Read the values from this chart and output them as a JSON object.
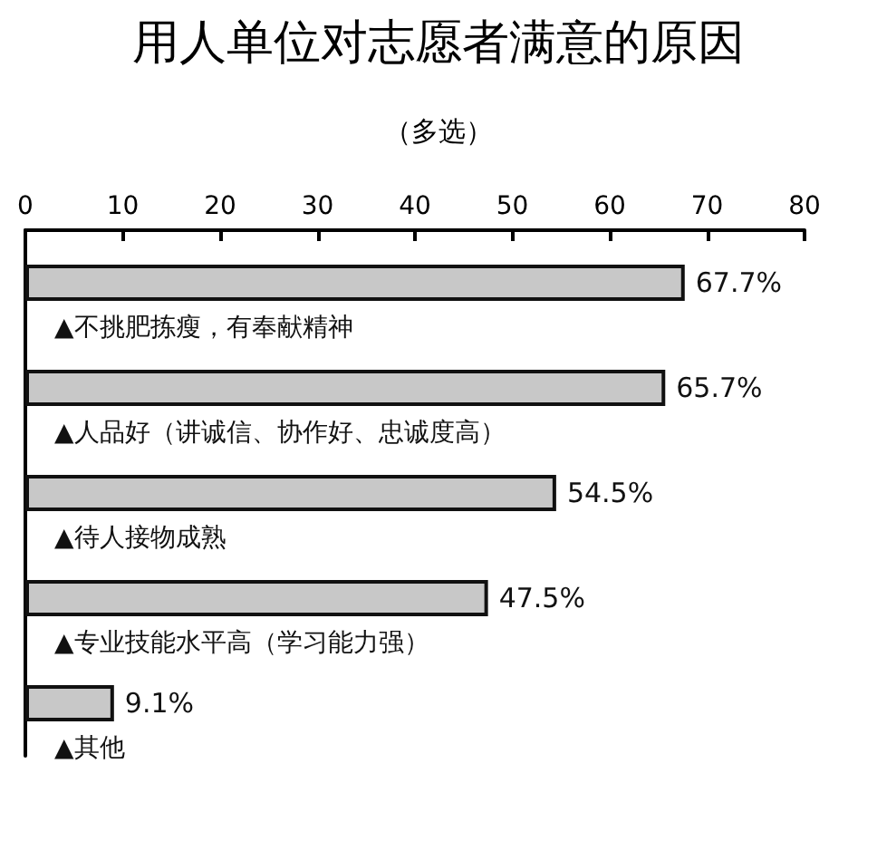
{
  "chart_data": {
    "type": "bar",
    "orientation": "horizontal",
    "title": "用人单位对志愿者满意的原因",
    "subtitle": "（多选）",
    "categories": [
      "▲不挑肥拣瘦，有奉献精神",
      "▲人品好（讲诚信、协作好、忠诚度高）",
      "▲待人接物成熟",
      "▲专业技能水平高（学习能力强）",
      "▲其他"
    ],
    "values": [
      67.7,
      65.7,
      54.5,
      47.5,
      9.1
    ],
    "value_labels": [
      "67.7%",
      "65.7%",
      "54.5%",
      "47.5%",
      "9.1%"
    ],
    "color": "#c8c8c8",
    "xlim": [
      0,
      80
    ],
    "xticks": [
      0,
      10,
      20,
      30,
      40,
      50,
      60,
      70,
      80
    ],
    "grid": false
  }
}
